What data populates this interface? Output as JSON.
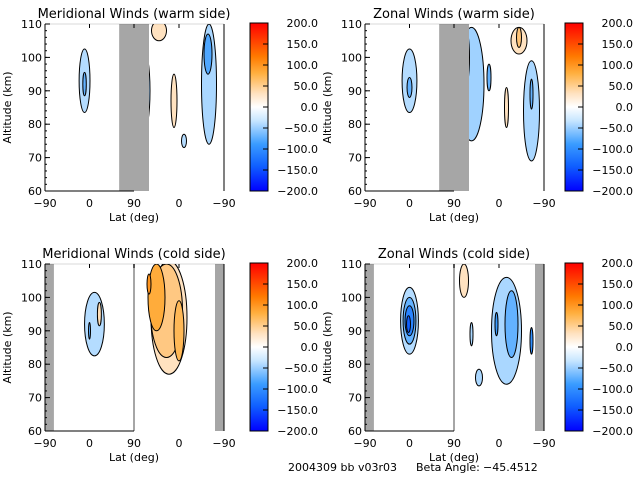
{
  "footer": {
    "run_id": "2004309 bb v03r03",
    "beta_label": "Beta Angle:",
    "beta_value": "-45.4512"
  },
  "chart_data": [
    {
      "type": "heatmap",
      "subtype": "filled-contour",
      "title": "Meridional Winds (warm side)",
      "xlabel": "Lat (deg)",
      "ylabel": "Altitude (km)",
      "x_tick_labels": [
        "-90",
        "0",
        "90",
        "0",
        "-90"
      ],
      "y_ticks": [
        60,
        70,
        80,
        90,
        100,
        110
      ],
      "ylim": [
        60,
        110
      ],
      "x_segments": [
        {
          "from": -90,
          "to": 90
        },
        {
          "from": 90,
          "to": -90
        }
      ],
      "no_data_bands": [
        {
          "segment": 0,
          "lat": [
            60,
            90
          ]
        },
        {
          "segment": 1,
          "lat": [
            90,
            60
          ]
        }
      ],
      "colorbar": {
        "min": -200,
        "max": 200,
        "ticks": [
          "200.0",
          "150.0",
          "100.0",
          "50.0",
          "0.0",
          "-50.0",
          "-100.0",
          "-150.0",
          "-200.0"
        ]
      },
      "contours": [
        {
          "segment": 0,
          "lat": -10,
          "alt": 93,
          "wlat": 22,
          "walt": 19,
          "value": -30
        },
        {
          "segment": 0,
          "lat": -10,
          "alt": 92,
          "wlat": 7,
          "walt": 7,
          "value": -70
        },
        {
          "segment": 1,
          "lat": 72,
          "alt": 90,
          "wlat": 28,
          "walt": 26,
          "value": -40
        },
        {
          "segment": 1,
          "lat": 80,
          "alt": 93,
          "wlat": 8,
          "walt": 14,
          "value": -170
        },
        {
          "segment": 1,
          "lat": 10,
          "alt": 87,
          "wlat": 12,
          "walt": 16,
          "value": 20
        },
        {
          "segment": 1,
          "lat": 40,
          "alt": 108,
          "wlat": 30,
          "walt": 6,
          "value": 20
        },
        {
          "segment": 1,
          "lat": -60,
          "alt": 92,
          "wlat": 30,
          "walt": 36,
          "value": -35
        },
        {
          "segment": 1,
          "lat": -58,
          "alt": 101,
          "wlat": 16,
          "walt": 12,
          "value": -80
        },
        {
          "segment": 1,
          "lat": -10,
          "alt": 75,
          "wlat": 10,
          "walt": 4,
          "value": -30
        }
      ]
    },
    {
      "type": "heatmap",
      "subtype": "filled-contour",
      "title": "Zonal Winds (warm side)",
      "xlabel": "Lat (deg)",
      "ylabel": "Altitude (km)",
      "x_tick_labels": [
        "-90",
        "0",
        "90",
        "0",
        "-90"
      ],
      "y_ticks": [
        60,
        70,
        80,
        90,
        100,
        110
      ],
      "ylim": [
        60,
        110
      ],
      "x_segments": [
        {
          "from": -90,
          "to": 90
        },
        {
          "from": 90,
          "to": -90
        }
      ],
      "no_data_bands": [
        {
          "segment": 0,
          "lat": [
            60,
            90
          ]
        },
        {
          "segment": 1,
          "lat": [
            90,
            60
          ]
        }
      ],
      "colorbar": {
        "min": -200,
        "max": 200,
        "ticks": [
          "200.0",
          "150.0",
          "100.0",
          "50.0",
          "0.0",
          "-50.0",
          "-100.0",
          "-150.0",
          "-200.0"
        ]
      },
      "contours": [
        {
          "segment": 0,
          "lat": 0,
          "alt": 93,
          "wlat": 30,
          "walt": 19,
          "value": -30
        },
        {
          "segment": 0,
          "lat": 0,
          "alt": 91,
          "wlat": 10,
          "walt": 6,
          "value": -70
        },
        {
          "segment": 1,
          "lat": 55,
          "alt": 92,
          "wlat": 50,
          "walt": 34,
          "value": -40
        },
        {
          "segment": 1,
          "lat": 70,
          "alt": 100,
          "wlat": 22,
          "walt": 20,
          "value": -80
        },
        {
          "segment": 1,
          "lat": 75,
          "alt": 103,
          "wlat": 10,
          "walt": 12,
          "value": -130
        },
        {
          "segment": 1,
          "lat": 20,
          "alt": 94,
          "wlat": 8,
          "walt": 8,
          "value": -70
        },
        {
          "segment": 1,
          "lat": -40,
          "alt": 105,
          "wlat": 32,
          "walt": 8,
          "value": 20
        },
        {
          "segment": 1,
          "lat": -40,
          "alt": 106,
          "wlat": 10,
          "walt": 6,
          "value": 55
        },
        {
          "segment": 1,
          "lat": -15,
          "alt": 85,
          "wlat": 8,
          "walt": 12,
          "value": 20
        },
        {
          "segment": 1,
          "lat": -65,
          "alt": 84,
          "wlat": 32,
          "walt": 30,
          "value": -35
        },
        {
          "segment": 1,
          "lat": -65,
          "alt": 89,
          "wlat": 6,
          "walt": 9,
          "value": -70
        }
      ]
    },
    {
      "type": "heatmap",
      "subtype": "filled-contour",
      "title": "Meridional Winds (cold side)",
      "xlabel": "Lat (deg)",
      "ylabel": "Altitude (km)",
      "x_tick_labels": [
        "-90",
        "0",
        "90",
        "0",
        "-90"
      ],
      "y_ticks": [
        60,
        70,
        80,
        90,
        100,
        110
      ],
      "ylim": [
        60,
        110
      ],
      "x_segments": [
        {
          "from": -90,
          "to": 90
        },
        {
          "from": 90,
          "to": -90
        }
      ],
      "no_data_bands": [
        {
          "segment": 0,
          "lat": [
            -90,
            -72
          ]
        },
        {
          "segment": 1,
          "lat": [
            -72,
            -90
          ]
        }
      ],
      "colorbar": {
        "min": -200,
        "max": 200,
        "ticks": [
          "200.0",
          "150.0",
          "100.0",
          "50.0",
          "0.0",
          "-50.0",
          "-100.0",
          "-150.0",
          "-200.0"
        ]
      },
      "contours": [
        {
          "segment": 0,
          "lat": 10,
          "alt": 92,
          "wlat": 40,
          "walt": 19,
          "value": -30
        },
        {
          "segment": 0,
          "lat": 0,
          "alt": 90,
          "wlat": 4,
          "walt": 5,
          "value": -70
        },
        {
          "segment": 0,
          "lat": 20,
          "alt": 95,
          "wlat": 8,
          "walt": 7,
          "value": 25
        },
        {
          "segment": 1,
          "lat": 20,
          "alt": 94,
          "wlat": 72,
          "walt": 34,
          "value": 20
        },
        {
          "segment": 1,
          "lat": 25,
          "alt": 96,
          "wlat": 64,
          "walt": 28,
          "value": 50
        },
        {
          "segment": 1,
          "lat": 45,
          "alt": 100,
          "wlat": 34,
          "walt": 20,
          "value": 85
        },
        {
          "segment": 1,
          "lat": 60,
          "alt": 104,
          "wlat": 8,
          "walt": 6,
          "value": 110
        },
        {
          "segment": 1,
          "lat": 0,
          "alt": 90,
          "wlat": 20,
          "walt": 18,
          "value": 70
        }
      ]
    },
    {
      "type": "heatmap",
      "subtype": "filled-contour",
      "title": "Zonal Winds (cold side)",
      "xlabel": "Lat (deg)",
      "ylabel": "Altitude (km)",
      "x_tick_labels": [
        "-90",
        "0",
        "90",
        "0",
        "-90"
      ],
      "y_ticks": [
        60,
        70,
        80,
        90,
        100,
        110
      ],
      "ylim": [
        60,
        110
      ],
      "x_segments": [
        {
          "from": -90,
          "to": 90
        },
        {
          "from": 90,
          "to": -90
        }
      ],
      "no_data_bands": [
        {
          "segment": 0,
          "lat": [
            -90,
            -72
          ]
        },
        {
          "segment": 1,
          "lat": [
            -72,
            -90
          ]
        }
      ],
      "colorbar": {
        "min": -200,
        "max": 200,
        "ticks": [
          "200.0",
          "150.0",
          "100.0",
          "50.0",
          "0.0",
          "-50.0",
          "-100.0",
          "-150.0",
          "-200.0"
        ]
      },
      "contours": [
        {
          "segment": 0,
          "lat": 0,
          "alt": 93,
          "wlat": 36,
          "walt": 20,
          "value": -30
        },
        {
          "segment": 0,
          "lat": 0,
          "alt": 93,
          "wlat": 26,
          "walt": 14,
          "value": -70
        },
        {
          "segment": 0,
          "lat": 0,
          "alt": 93,
          "wlat": 18,
          "walt": 9,
          "value": -110
        },
        {
          "segment": 0,
          "lat": -2,
          "alt": 92,
          "wlat": 8,
          "walt": 5,
          "value": -140
        },
        {
          "segment": 1,
          "lat": 70,
          "alt": 105,
          "wlat": 18,
          "walt": 10,
          "value": 20
        },
        {
          "segment": 1,
          "lat": -15,
          "alt": 90,
          "wlat": 60,
          "walt": 32,
          "value": -35
        },
        {
          "segment": 1,
          "lat": -25,
          "alt": 92,
          "wlat": 26,
          "walt": 20,
          "value": -70
        },
        {
          "segment": 1,
          "lat": 5,
          "alt": 92,
          "wlat": 6,
          "walt": 7,
          "value": -90
        },
        {
          "segment": 1,
          "lat": -65,
          "alt": 87,
          "wlat": 6,
          "walt": 8,
          "value": -100
        },
        {
          "segment": 1,
          "lat": 55,
          "alt": 89,
          "wlat": 6,
          "walt": 7,
          "value": -35
        },
        {
          "segment": 1,
          "lat": 40,
          "alt": 76,
          "wlat": 14,
          "walt": 5,
          "value": -35
        }
      ]
    }
  ]
}
